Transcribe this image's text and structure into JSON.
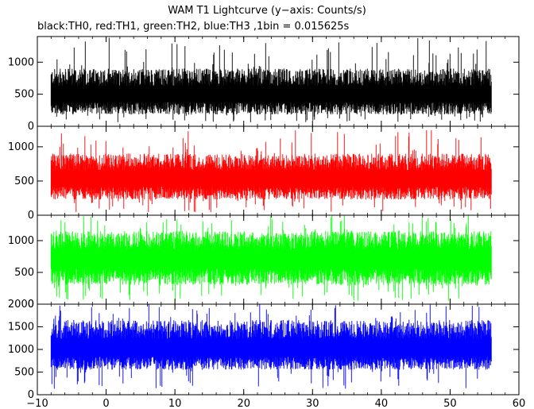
{
  "chart_data": {
    "type": "line",
    "title": "WAM T1 Lightcurve (y−axis: Counts/s)",
    "subtitle": "black:TH0, red:TH1, green:TH2, blue:TH3 ,1bin = 0.015625s",
    "xlim": [
      -10,
      60
    ],
    "x_ticks": [
      -10,
      0,
      10,
      20,
      30,
      40,
      50,
      60
    ],
    "x_tick_labels": [
      "−10",
      "0",
      "10",
      "20",
      "30",
      "40",
      "50",
      "60"
    ],
    "x_range": [
      -8.0,
      56.0
    ],
    "series": [
      {
        "color": "#000000",
        "ylim": [
          0,
          1400
        ],
        "y_ticks": [
          0,
          500,
          1000
        ],
        "mean": 480,
        "low_typ": 180,
        "high_typ": 900,
        "low_min": 60,
        "high_max": 1400
      },
      {
        "color": "#ff0000",
        "ylim": [
          0,
          1300
        ],
        "y_ticks": [
          0,
          500,
          1000
        ],
        "mean": 520,
        "low_typ": 230,
        "high_typ": 900,
        "low_min": 40,
        "high_max": 1250
      },
      {
        "color": "#00ff00",
        "ylim": [
          0,
          1400
        ],
        "y_ticks": [
          0,
          500,
          1000
        ],
        "mean": 700,
        "low_typ": 300,
        "high_typ": 1150,
        "low_min": 50,
        "high_max": 1400
      },
      {
        "color": "#0000ff",
        "ylim": [
          0,
          2000
        ],
        "y_ticks": [
          0,
          500,
          1000,
          1500,
          2000
        ],
        "mean": 1000,
        "low_typ": 550,
        "high_typ": 1650,
        "low_min": 120,
        "high_max": 2000
      }
    ]
  }
}
